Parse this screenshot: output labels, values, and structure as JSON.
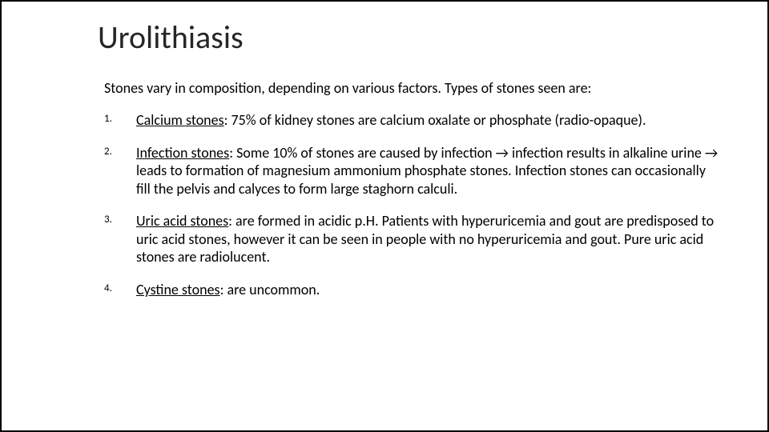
{
  "slide": {
    "title": "Urolithiasis",
    "intro": "Stones vary in composition, depending on various factors. Types of stones seen are:",
    "items": [
      {
        "name": "Calcium stones",
        "desc": ": 75% of kidney stones are calcium oxalate or phosphate (radio-opaque)."
      },
      {
        "name": "Infection stones",
        "desc": ": Some 10% of stones are caused by infection → infection results in alkaline urine → leads to formation of magnesium ammonium phosphate stones. Infection stones can occasionally fill the pelvis and calyces to form large staghorn calculi."
      },
      {
        "name": "Uric acid stones",
        "desc": ": are formed in acidic p.H. Patients with hyperuricemia and gout are predisposed to uric acid stones, however it can be seen in people with no hyperuricemia and gout. Pure uric acid stones are radiolucent."
      },
      {
        "name": "Cystine stones",
        "desc": ": are uncommon."
      }
    ]
  },
  "style": {
    "background_color": "#ffffff",
    "border_color": "#000000",
    "title_color": "#262626",
    "text_color": "#000000",
    "title_fontsize_pt": 30,
    "body_fontsize_pt": 13.5,
    "number_fontsize_pt": 10,
    "font_family": "Calibri"
  }
}
